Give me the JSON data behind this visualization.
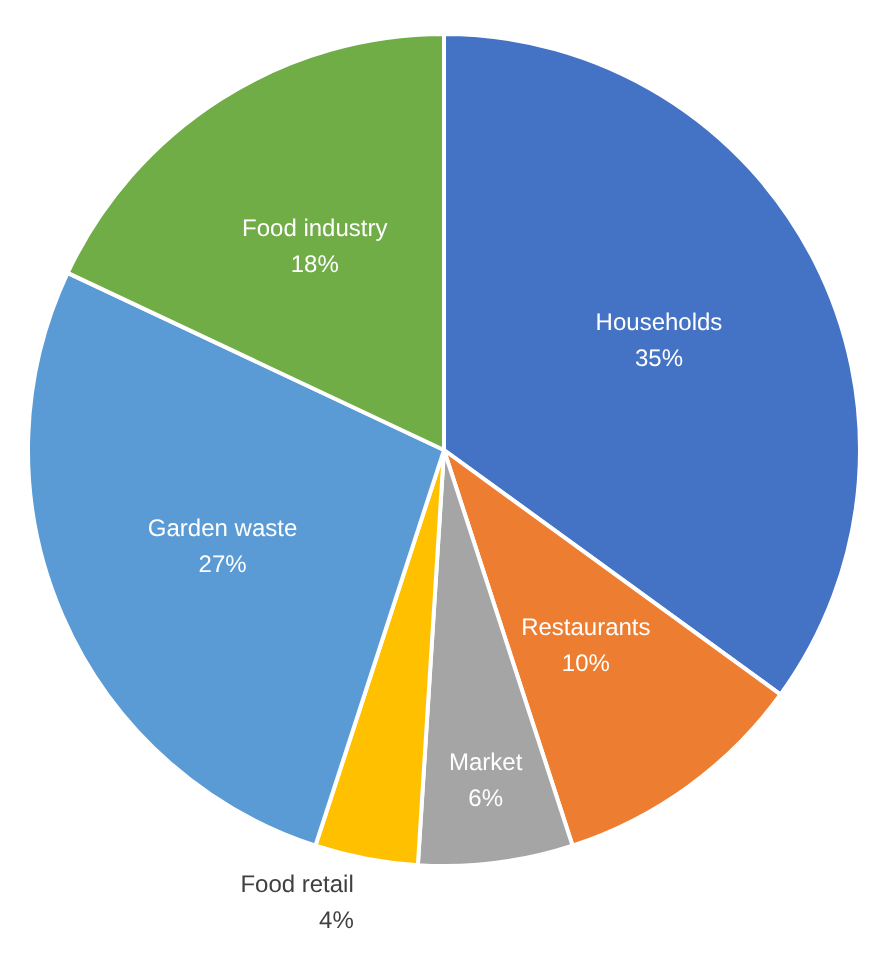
{
  "chart_data": {
    "type": "pie",
    "categories": [
      "Households",
      "Restaurants",
      "Market",
      "Food retail",
      "Garden waste",
      "Food industry"
    ],
    "values": [
      35,
      10,
      6,
      4,
      27,
      18
    ],
    "value_labels": [
      "35%",
      "10%",
      "6%",
      "4%",
      "27%",
      "18%"
    ],
    "colors": [
      "#4472c4",
      "#ed7d31",
      "#a5a5a5",
      "#ffc000",
      "#5b9bd5",
      "#70ad47"
    ]
  }
}
